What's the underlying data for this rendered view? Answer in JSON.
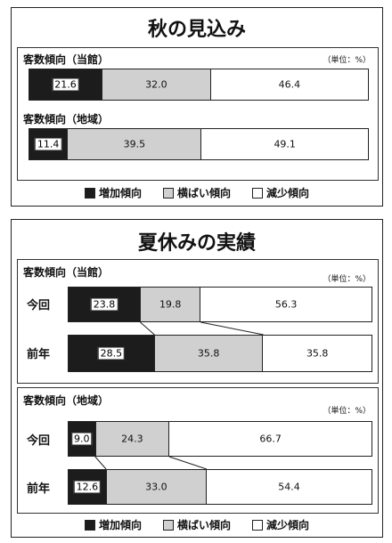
{
  "section1": {
    "title": "秋の見込み",
    "chart_data": [
      {
        "type": "bar",
        "title": "客数傾向（当館）",
        "unit": "（単位：%）",
        "stacked": true,
        "categories": [
          ""
        ],
        "series": [
          {
            "name": "増加傾向",
            "values": [
              21.6
            ]
          },
          {
            "name": "横ばい傾向",
            "values": [
              32.0
            ]
          },
          {
            "name": "減少傾向",
            "values": [
              46.4
            ]
          }
        ]
      },
      {
        "type": "bar",
        "title": "客数傾向（地域）",
        "unit": "",
        "stacked": true,
        "categories": [
          ""
        ],
        "series": [
          {
            "name": "増加傾向",
            "values": [
              11.4
            ]
          },
          {
            "name": "横ばい傾向",
            "values": [
              39.5
            ]
          },
          {
            "name": "減少傾向",
            "values": [
              49.1
            ]
          }
        ]
      }
    ]
  },
  "section2": {
    "title": "夏休みの実績",
    "chart_data": [
      {
        "type": "bar",
        "title": "客数傾向（当館）",
        "unit": "（単位：%）",
        "stacked": true,
        "categories": [
          "今回",
          "前年"
        ],
        "series": [
          {
            "name": "増加傾向",
            "values": [
              23.8,
              28.5
            ]
          },
          {
            "name": "横ばい傾向",
            "values": [
              19.8,
              35.8
            ]
          },
          {
            "name": "減少傾向",
            "values": [
              56.3,
              35.8
            ]
          }
        ]
      },
      {
        "type": "bar",
        "title": "客数傾向（地域）",
        "unit": "（単位：%）",
        "stacked": true,
        "categories": [
          "今回",
          "前年"
        ],
        "series": [
          {
            "name": "増加傾向",
            "values": [
              9.0,
              12.6
            ]
          },
          {
            "name": "横ばい傾向",
            "values": [
              24.3,
              33.0
            ]
          },
          {
            "name": "減少傾向",
            "values": [
              66.7,
              54.4
            ]
          }
        ]
      }
    ]
  },
  "legend": {
    "items": [
      "増加傾向",
      "横ばい傾向",
      "減少傾向"
    ]
  },
  "colors": {
    "increase": "#1c1c1c",
    "flat": "#d0d0d0",
    "decrease": "#ffffff"
  }
}
